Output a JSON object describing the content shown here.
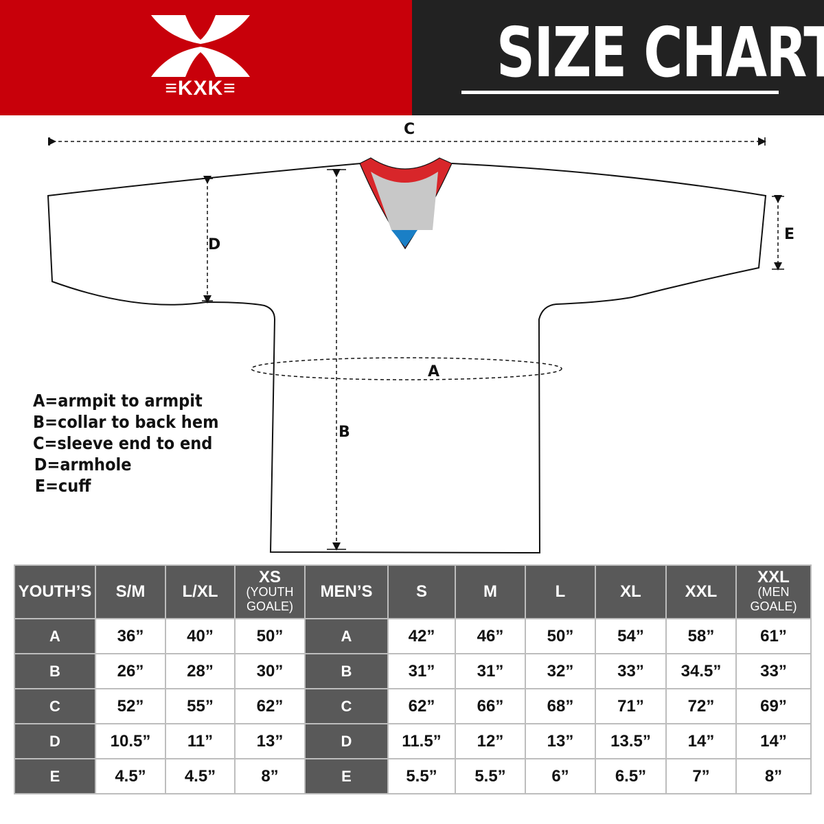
{
  "brand": {
    "name": "KXK",
    "colors": {
      "red": "#c8000a",
      "dark": "#222222",
      "table_header": "#595959"
    }
  },
  "header": {
    "title": "SIZE CHART"
  },
  "diagram": {
    "labels": {
      "a": "A",
      "b": "B",
      "c": "C",
      "d": "D",
      "e": "E"
    },
    "legend": [
      "A=armpit to armpit",
      "B=collar to back hem",
      "C=sleeve end to end",
      "D=armhole",
      "E=cuff"
    ]
  },
  "table": {
    "youth": {
      "header": "YOUTH’S",
      "columns": [
        {
          "main": "S/M",
          "sub": ""
        },
        {
          "main": "L/XL",
          "sub": ""
        },
        {
          "main": "XS",
          "sub": "(YOUTH GOALE)"
        }
      ]
    },
    "men": {
      "header": "MEN’S",
      "columns": [
        {
          "main": "S",
          "sub": ""
        },
        {
          "main": "M",
          "sub": ""
        },
        {
          "main": "L",
          "sub": ""
        },
        {
          "main": "XL",
          "sub": ""
        },
        {
          "main": "XXL",
          "sub": ""
        },
        {
          "main": "XXL",
          "sub": "(MEN GOALE)"
        }
      ]
    },
    "rows": [
      {
        "label": "A",
        "youth": [
          "36”",
          "40”",
          "50”"
        ],
        "men": [
          "42”",
          "46”",
          "50”",
          "54”",
          "58”",
          "61”"
        ]
      },
      {
        "label": "B",
        "youth": [
          "26”",
          "28”",
          "30”"
        ],
        "men": [
          "31”",
          "31”",
          "32”",
          "33”",
          "34.5”",
          "33”"
        ]
      },
      {
        "label": "C",
        "youth": [
          "52”",
          "55”",
          "62”"
        ],
        "men": [
          "62”",
          "66”",
          "68”",
          "71”",
          "72”",
          "69”"
        ]
      },
      {
        "label": "D",
        "youth": [
          "10.5”",
          "11”",
          "13”"
        ],
        "men": [
          "11.5”",
          "12”",
          "13”",
          "13.5”",
          "14”",
          "14”"
        ]
      },
      {
        "label": "E",
        "youth": [
          "4.5”",
          "4.5”",
          "8”"
        ],
        "men": [
          "5.5”",
          "5.5”",
          "6”",
          "6.5”",
          "7”",
          "8”"
        ]
      }
    ]
  }
}
